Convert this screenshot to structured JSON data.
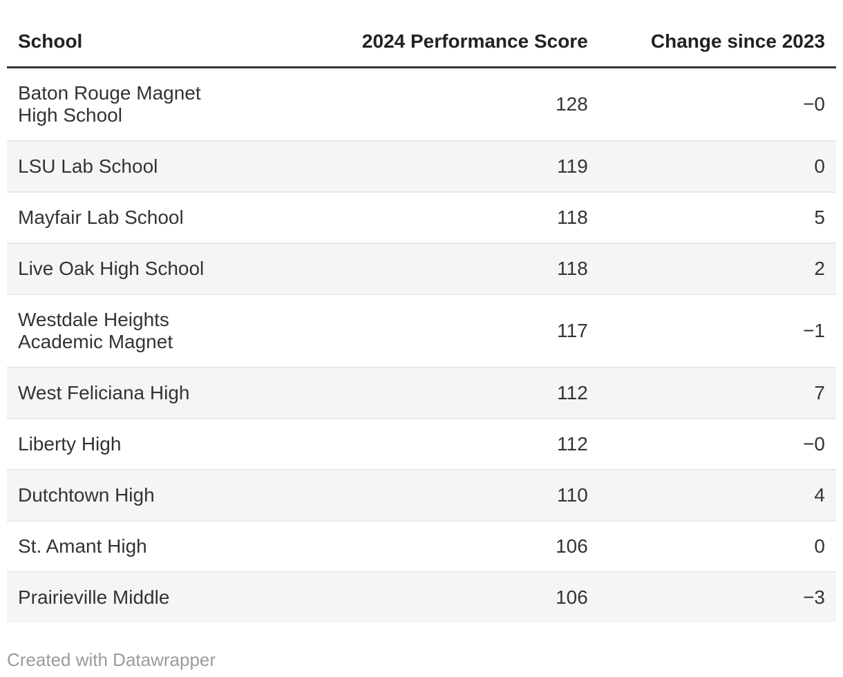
{
  "table": {
    "columns": [
      {
        "id": "school",
        "label": "School",
        "align": "left"
      },
      {
        "id": "score",
        "label": "2024 Performance Score",
        "align": "right"
      },
      {
        "id": "change",
        "label": "Change since 2023",
        "align": "right"
      }
    ],
    "rows": [
      {
        "school": "Baton Rouge Magnet High School",
        "score": "128",
        "change": "−0"
      },
      {
        "school": "LSU Lab School",
        "score": "119",
        "change": "0"
      },
      {
        "school": "Mayfair Lab School",
        "score": "118",
        "change": "5"
      },
      {
        "school": "Live Oak High School",
        "score": "118",
        "change": "2"
      },
      {
        "school": "Westdale Heights Academic Magnet",
        "score": "117",
        "change": "−1"
      },
      {
        "school": "West Feliciana High",
        "score": "112",
        "change": "7"
      },
      {
        "school": "Liberty High",
        "score": "112",
        "change": "−0"
      },
      {
        "school": "Dutchtown High",
        "score": "110",
        "change": "4"
      },
      {
        "school": "St. Amant High",
        "score": "106",
        "change": "0"
      },
      {
        "school": "Prairieville Middle",
        "score": "106",
        "change": "−3"
      }
    ]
  },
  "footer": {
    "attribution": "Created with Datawrapper"
  },
  "colors": {
    "stripe": "#f5f5f5",
    "row_rule": "#e8e8e8",
    "header_rule": "#333333",
    "text": "#333333",
    "header_text": "#222222",
    "attribution_text": "#9b9b9b",
    "background": "#ffffff"
  },
  "chart_data": {
    "type": "table",
    "columns": [
      "School",
      "2024 Performance Score",
      "Change since 2023"
    ],
    "rows": [
      [
        "Baton Rouge Magnet High School",
        128,
        "−0"
      ],
      [
        "LSU Lab School",
        119,
        "0"
      ],
      [
        "Mayfair Lab School",
        118,
        "5"
      ],
      [
        "Live Oak High School",
        118,
        "2"
      ],
      [
        "Westdale Heights Academic Magnet",
        117,
        "−1"
      ],
      [
        "West Feliciana High",
        112,
        "7"
      ],
      [
        "Liberty High",
        112,
        "−0"
      ],
      [
        "Dutchtown High",
        110,
        "4"
      ],
      [
        "St. Amant High",
        106,
        "0"
      ],
      [
        "Prairieville Middle",
        106,
        "−3"
      ]
    ],
    "layout": {
      "striped_rows": true,
      "numeric_columns_right_aligned": true,
      "grid": "row-rules-only"
    }
  }
}
